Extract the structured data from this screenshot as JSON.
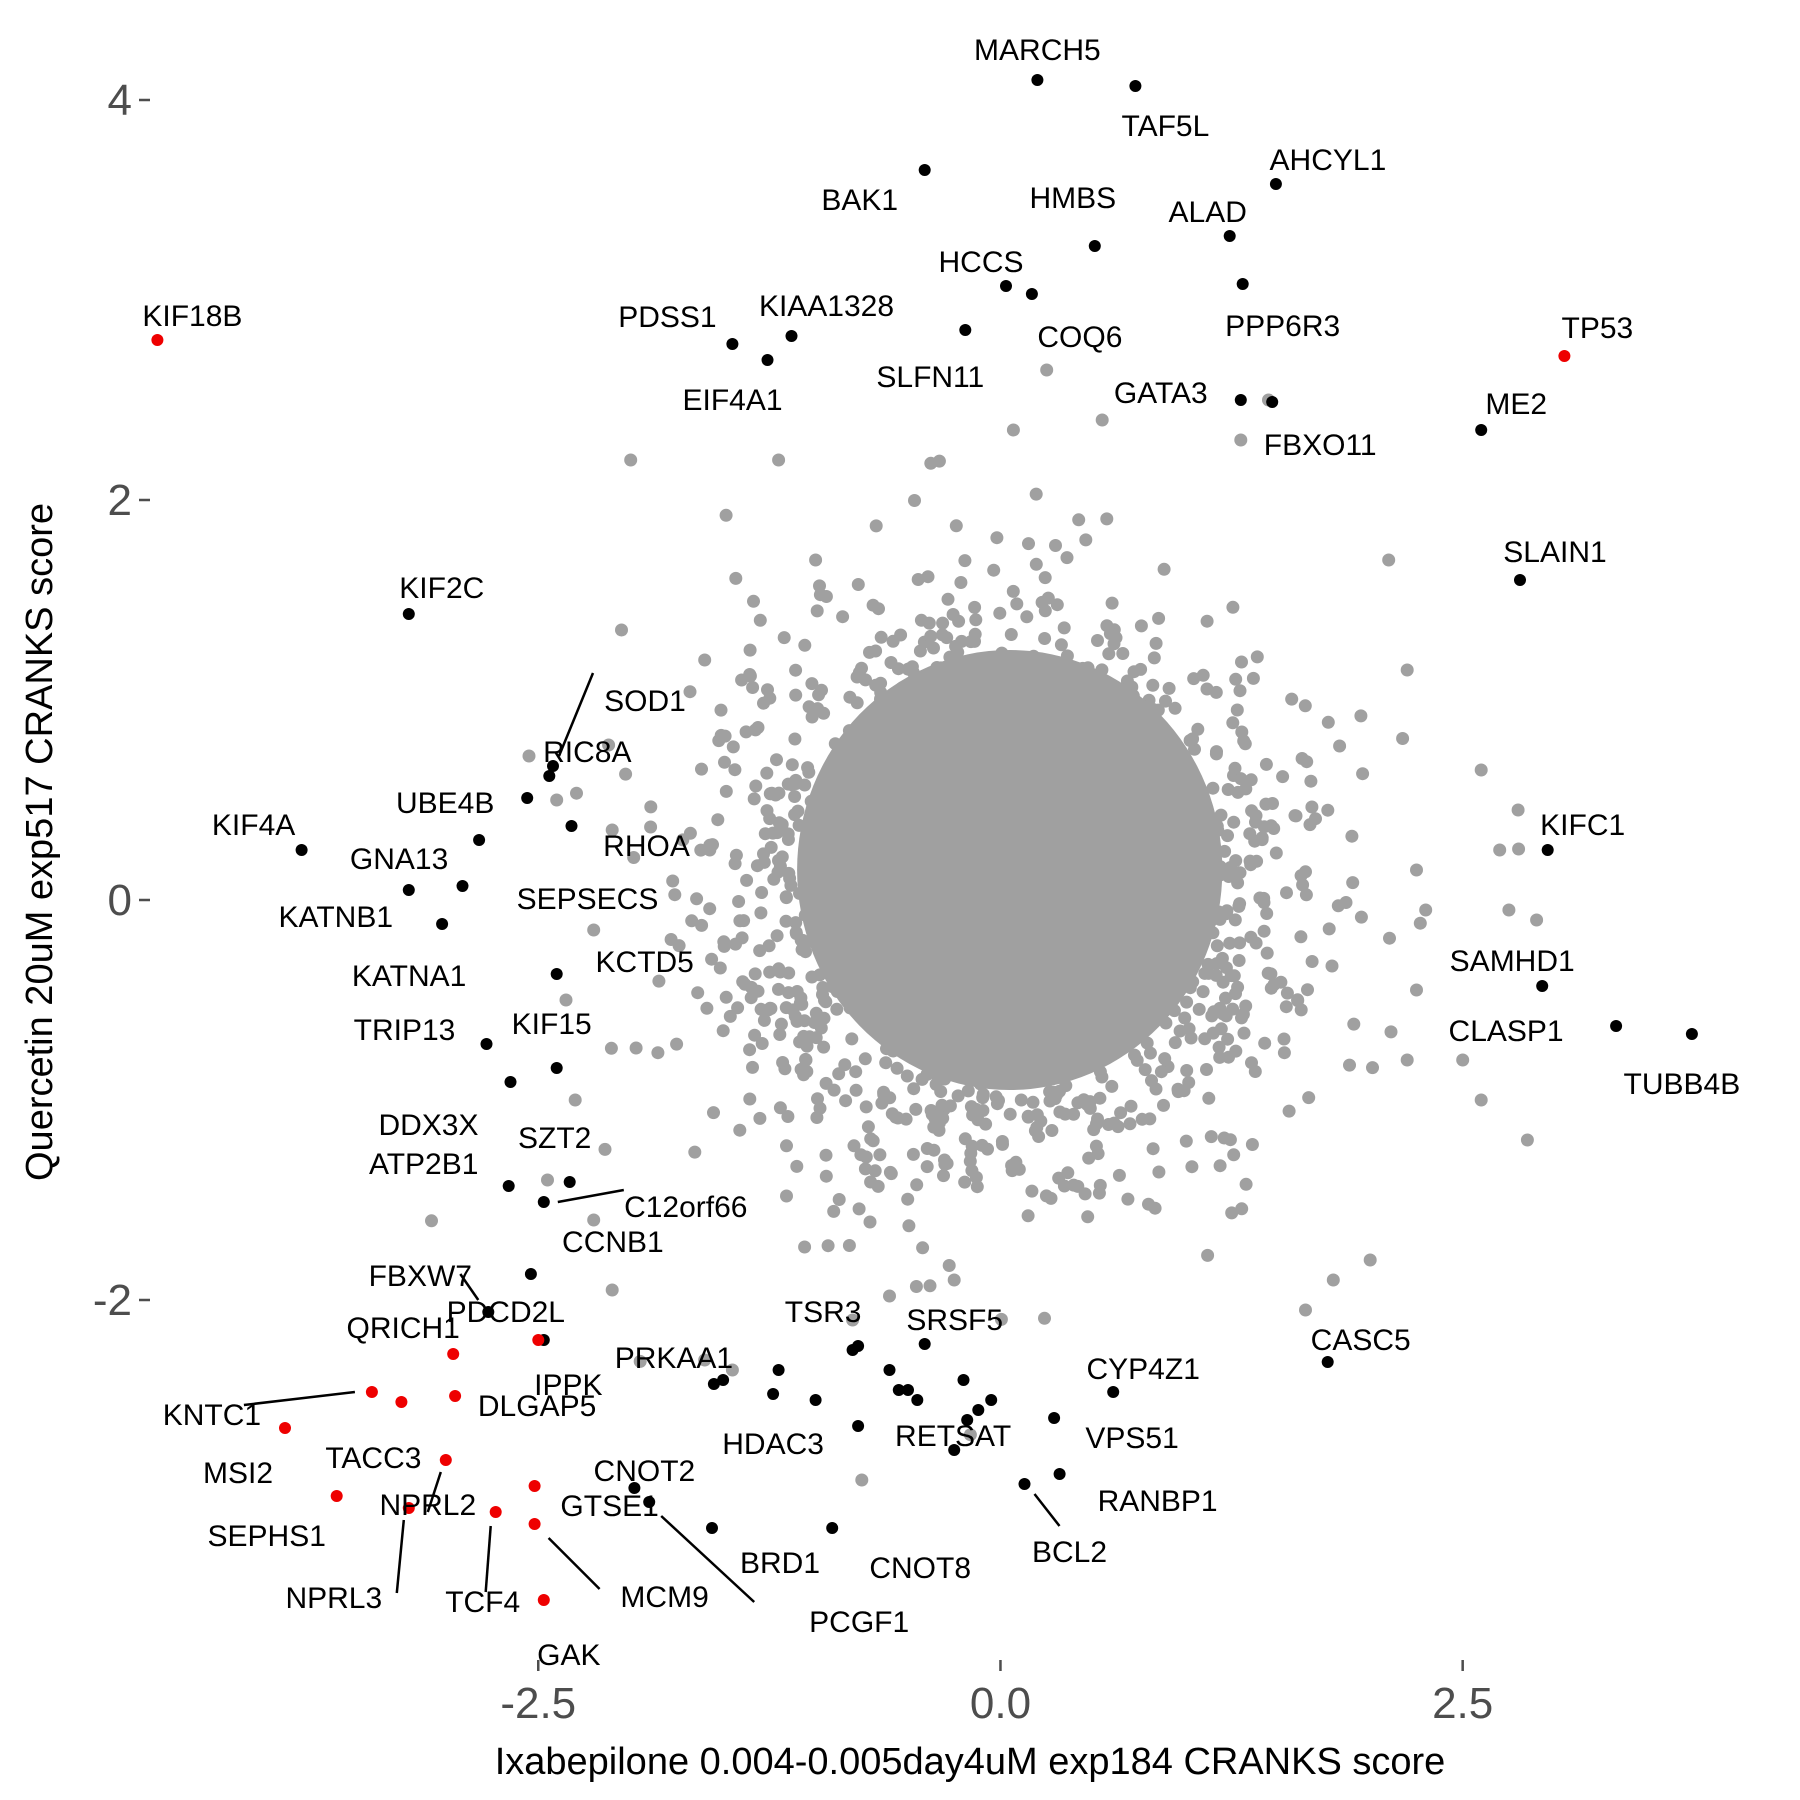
{
  "colors": {
    "background": "#ffffff",
    "bulk": "#a0a0a0",
    "highlight": "#000000",
    "red": "#ee0000",
    "tick": "#4d4d4d"
  },
  "chart_data": {
    "type": "scatter",
    "xlabel": "Ixabepilone 0.004-0.005day4uM exp184 CRANKS score",
    "ylabel": "Quercetin 20uM exp517 CRANKS score",
    "xlim": [
      -4.6,
      4.0
    ],
    "ylim": [
      -3.8,
      4.3
    ],
    "x_ticks": [
      -2.5,
      0.0,
      2.5
    ],
    "x_tick_labels": [
      "-2.5",
      "0.0",
      "2.5"
    ],
    "y_ticks": [
      -2,
      0,
      2,
      4
    ],
    "y_tick_labels": [
      "-2",
      "0",
      "2",
      "4"
    ],
    "grid": false,
    "legend": "none",
    "bulk_series": {
      "color": "#a0a0a0",
      "points": [
        [
          -2.05,
          1.35
        ],
        [
          -2.55,
          0.72
        ],
        [
          -2.4,
          0.5
        ],
        [
          -2.1,
          0.35
        ],
        [
          -2.2,
          -0.15
        ],
        [
          -2.35,
          -0.5
        ],
        [
          -2.3,
          -1.0
        ],
        [
          -2.45,
          -1.4
        ],
        [
          -2.2,
          -1.6
        ],
        [
          -2.1,
          -1.95
        ],
        [
          -1.6,
          -2.3
        ],
        [
          -1.45,
          -2.35
        ],
        [
          -0.75,
          -2.9
        ],
        [
          -0.8,
          -2.1
        ],
        [
          -0.25,
          -1.9
        ],
        [
          0.25,
          2.65
        ],
        [
          0.55,
          2.4
        ],
        [
          0.07,
          2.35
        ],
        [
          1.3,
          2.3
        ],
        [
          1.45,
          2.5
        ],
        [
          -2.0,
          2.2
        ],
        [
          -1.2,
          2.2
        ],
        [
          2.1,
          1.7
        ],
        [
          2.2,
          1.15
        ],
        [
          2.25,
          0.15
        ],
        [
          2.3,
          -0.05
        ],
        [
          2.25,
          -0.45
        ],
        [
          2.2,
          -0.8
        ],
        [
          2.6,
          0.65
        ],
        [
          2.8,
          0.45
        ],
        [
          2.7,
          0.25
        ],
        [
          2.75,
          -0.05
        ],
        [
          2.9,
          -0.1
        ],
        [
          2.85,
          -1.2
        ],
        [
          2.6,
          -1.0
        ],
        [
          2.5,
          -0.8
        ],
        [
          1.65,
          -2.05
        ],
        [
          1.8,
          -1.9
        ],
        [
          2.0,
          -1.8
        ],
        [
          -1.6,
          1.2
        ],
        [
          -1.4,
          1.1
        ],
        [
          -1.0,
          1.7
        ]
      ]
    },
    "points": [
      {
        "label": "MARCH5",
        "x": 0.2,
        "y": 4.1,
        "color": "#000000"
      },
      {
        "label": "TAF5L",
        "x": 0.73,
        "y": 4.07,
        "color": "#000000"
      },
      {
        "label": "BAK1",
        "x": -0.41,
        "y": 3.65,
        "color": "#000000"
      },
      {
        "label": "AHCYL1",
        "x": 1.49,
        "y": 3.58,
        "color": "#000000"
      },
      {
        "label": "HMBS",
        "x": 0.51,
        "y": 3.27,
        "color": "#000000"
      },
      {
        "label": "ALAD",
        "x": 1.24,
        "y": 3.32,
        "color": "#000000"
      },
      {
        "label": "HCCS",
        "x": 0.03,
        "y": 3.07,
        "color": "#000000"
      },
      {
        "label": "COQ6",
        "x": 0.17,
        "y": 3.03,
        "color": "#000000"
      },
      {
        "label": "PPP6R3",
        "x": 1.31,
        "y": 3.08,
        "color": "#000000"
      },
      {
        "label": "PDSS1",
        "x": -1.45,
        "y": 2.78,
        "color": "#000000"
      },
      {
        "label": "KIAA1328",
        "x": -1.13,
        "y": 2.82,
        "color": "#000000"
      },
      {
        "label": "EIF4A1",
        "x": -1.26,
        "y": 2.7,
        "color": "#000000"
      },
      {
        "label": "SLFN11",
        "x": -0.19,
        "y": 2.85,
        "color": "#000000"
      },
      {
        "label": "GATA3",
        "x": 1.3,
        "y": 2.5,
        "color": "#000000"
      },
      {
        "label": "FBXO11",
        "x": 1.47,
        "y": 2.49,
        "color": "#000000"
      },
      {
        "label": "KIF18B",
        "x": -4.56,
        "y": 2.8,
        "color": "#ee0000"
      },
      {
        "label": "TP53",
        "x": 3.05,
        "y": 2.72,
        "color": "#ee0000"
      },
      {
        "label": "ME2",
        "x": 2.6,
        "y": 2.35,
        "color": "#000000"
      },
      {
        "label": "SLAIN1",
        "x": 2.81,
        "y": 1.6,
        "color": "#000000"
      },
      {
        "label": "KIF2C",
        "x": -3.2,
        "y": 1.43,
        "color": "#000000"
      },
      {
        "label": "SOD1",
        "x": -2.42,
        "y": 0.67,
        "color": "#000000"
      },
      {
        "label": "RIC8A",
        "x": -2.44,
        "y": 0.62,
        "color": "#000000"
      },
      {
        "label": "UBE4B",
        "x": -2.56,
        "y": 0.51,
        "color": "#000000"
      },
      {
        "label": "RHOA",
        "x": -2.32,
        "y": 0.37,
        "color": "#000000"
      },
      {
        "label": "GNA13",
        "x": -2.82,
        "y": 0.3,
        "color": "#000000"
      },
      {
        "label": "KIF4A",
        "x": -3.78,
        "y": 0.25,
        "color": "#000000"
      },
      {
        "label": "KIFC1",
        "x": 2.96,
        "y": 0.25,
        "color": "#000000"
      },
      {
        "label": "SEPSECS",
        "x": -2.91,
        "y": 0.07,
        "color": "#000000"
      },
      {
        "label": "KATNB1",
        "x": -3.2,
        "y": 0.05,
        "color": "#000000"
      },
      {
        "label": "KATNA1",
        "x": -3.02,
        "y": -0.12,
        "color": "#000000"
      },
      {
        "label": "KCTD5",
        "x": -2.4,
        "y": -0.37,
        "color": "#000000"
      },
      {
        "label": "SAMHD1",
        "x": 2.93,
        "y": -0.43,
        "color": "#000000"
      },
      {
        "label": "CLASP1",
        "x": 3.33,
        "y": -0.63,
        "color": "#000000"
      },
      {
        "label": "TUBB4B",
        "x": 3.74,
        "y": -0.67,
        "color": "#000000"
      },
      {
        "label": "TRIP13",
        "x": -2.78,
        "y": -0.72,
        "color": "#000000"
      },
      {
        "label": "KIF15",
        "x": -2.4,
        "y": -0.84,
        "color": "#000000"
      },
      {
        "label": "DDX3X",
        "x": -2.65,
        "y": -0.91,
        "color": "#000000"
      },
      {
        "label": "ATP2B1",
        "x": -2.66,
        "y": -1.43,
        "color": "#000000"
      },
      {
        "label": "SZT2",
        "x": -2.33,
        "y": -1.41,
        "color": "#000000"
      },
      {
        "label": "C12orf66",
        "x": -2.47,
        "y": -1.51,
        "color": "#000000"
      },
      {
        "label": "CCNB1",
        "x": -2.54,
        "y": -1.87,
        "color": "#000000"
      },
      {
        "label": "FBXW7",
        "x": -2.77,
        "y": -2.06,
        "color": "#000000"
      },
      {
        "label": "PDCD2L",
        "x": -2.47,
        "y": -2.2,
        "color": "#000000"
      },
      {
        "label": "IPPK",
        "x": -2.5,
        "y": -2.2,
        "color": "#ee0000"
      },
      {
        "label": "QRICH1",
        "x": -2.96,
        "y": -2.27,
        "color": "#ee0000"
      },
      {
        "label": "KNTC1",
        "x": -3.4,
        "y": -2.46,
        "color": "#ee0000"
      },
      {
        "label": "TACC3",
        "x": -3.24,
        "y": -2.51,
        "color": "#ee0000"
      },
      {
        "label": "DLGAP5",
        "x": -2.95,
        "y": -2.48,
        "color": "#ee0000"
      },
      {
        "label": "MSI2",
        "x": -3.87,
        "y": -2.64,
        "color": "#ee0000"
      },
      {
        "label": "SEPHS1",
        "x": -3.59,
        "y": -2.98,
        "color": "#ee0000"
      },
      {
        "label": "NPRL2",
        "x": -3.0,
        "y": -2.8,
        "color": "#ee0000"
      },
      {
        "label": "NPRL3",
        "x": -3.2,
        "y": -3.04,
        "color": "#ee0000"
      },
      {
        "label": "TCF4",
        "x": -2.73,
        "y": -3.06,
        "color": "#ee0000"
      },
      {
        "label": "GTSE1",
        "x": -2.52,
        "y": -2.93,
        "color": "#ee0000"
      },
      {
        "label": "MCM9",
        "x": -2.52,
        "y": -3.12,
        "color": "#ee0000"
      },
      {
        "label": "GAK",
        "x": -2.47,
        "y": -3.5,
        "color": "#ee0000"
      },
      {
        "label": "PRKAA1",
        "x": -1.55,
        "y": -2.42,
        "color": "#000000"
      },
      {
        "label": "TSR3",
        "x": -0.77,
        "y": -2.23,
        "color": "#000000"
      },
      {
        "label": "SRSF5",
        "x": -0.41,
        "y": -2.22,
        "color": "#000000"
      },
      {
        "label": "HDAC3",
        "x": -1.23,
        "y": -2.47,
        "color": "#000000"
      },
      {
        "label": "CNOT2",
        "x": -1.98,
        "y": -2.94,
        "color": "#000000"
      },
      {
        "label": "PCGF1",
        "x": -1.9,
        "y": -3.01,
        "color": "#000000"
      },
      {
        "label": "BRD1",
        "x": -1.56,
        "y": -3.14,
        "color": "#000000"
      },
      {
        "label": "CNOT8",
        "x": -0.91,
        "y": -3.14,
        "color": "#000000"
      },
      {
        "label": "RETSAT",
        "x": -0.77,
        "y": -2.63,
        "color": "#000000"
      },
      {
        "label": "BCL2",
        "x": 0.13,
        "y": -2.92,
        "color": "#000000"
      },
      {
        "label": "RANBP1",
        "x": 0.32,
        "y": -2.87,
        "color": "#000000"
      },
      {
        "label": "CYP4Z1",
        "x": 0.61,
        "y": -2.46,
        "color": "#000000"
      },
      {
        "label": "VPS51",
        "x": 0.29,
        "y": -2.59,
        "color": "#000000"
      },
      {
        "label": "CASC5",
        "x": 1.77,
        "y": -2.31,
        "color": "#000000"
      }
    ],
    "unlabeled_points": [
      [
        -1.5,
        -2.4
      ],
      [
        -1.2,
        -2.35
      ],
      [
        -1.0,
        -2.5
      ],
      [
        -0.8,
        -2.25
      ],
      [
        -0.6,
        -2.35
      ],
      [
        -0.55,
        -2.45
      ],
      [
        -0.45,
        -2.5
      ],
      [
        -0.2,
        -2.4
      ],
      [
        -0.18,
        -2.6
      ],
      [
        -0.12,
        -2.55
      ],
      [
        -0.05,
        -2.5
      ],
      [
        -0.25,
        -2.75
      ],
      [
        -0.5,
        -2.45
      ]
    ]
  }
}
